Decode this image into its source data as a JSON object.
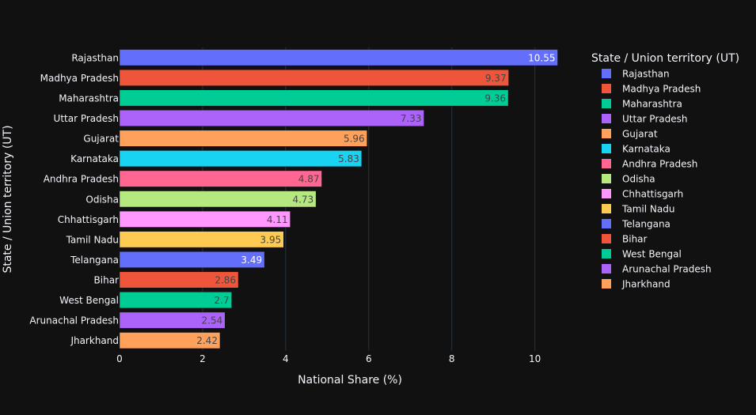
{
  "chart_data": {
    "type": "bar",
    "orientation": "horizontal",
    "xlabel": "National Share (%)",
    "ylabel": "State / Union territory (UT)",
    "xlim": [
      0,
      10.55
    ],
    "x_ticks": [
      0,
      2,
      4,
      6,
      8,
      10
    ],
    "grid": true,
    "legend": {
      "title": "State / Union territory (UT)",
      "placement": "right"
    },
    "series": [
      {
        "name": "Rajasthan",
        "value": 10.55,
        "color": "#636efa",
        "label_color": "#ffffff"
      },
      {
        "name": "Madhya Pradesh",
        "value": 9.37,
        "color": "#ef553b",
        "label_color": "#444444"
      },
      {
        "name": "Maharashtra",
        "value": 9.36,
        "color": "#00cc96",
        "label_color": "#444444"
      },
      {
        "name": "Uttar Pradesh",
        "value": 7.33,
        "color": "#ab63fa",
        "label_color": "#444444"
      },
      {
        "name": "Gujarat",
        "value": 5.96,
        "color": "#ffa15a",
        "label_color": "#444444"
      },
      {
        "name": "Karnataka",
        "value": 5.83,
        "color": "#19d3f3",
        "label_color": "#444444"
      },
      {
        "name": "Andhra Pradesh",
        "value": 4.87,
        "color": "#ff6692",
        "label_color": "#444444"
      },
      {
        "name": "Odisha",
        "value": 4.73,
        "color": "#b6e880",
        "label_color": "#444444"
      },
      {
        "name": "Chhattisgarh",
        "value": 4.11,
        "color": "#ff97ff",
        "label_color": "#444444"
      },
      {
        "name": "Tamil Nadu",
        "value": 3.95,
        "color": "#fecb52",
        "label_color": "#444444"
      },
      {
        "name": "Telangana",
        "value": 3.49,
        "color": "#636efa",
        "label_color": "#ffffff"
      },
      {
        "name": "Bihar",
        "value": 2.86,
        "color": "#ef553b",
        "label_color": "#444444"
      },
      {
        "name": "West Bengal",
        "value": 2.7,
        "color": "#00cc96",
        "label_color": "#444444"
      },
      {
        "name": "Arunachal Pradesh",
        "value": 2.54,
        "color": "#ab63fa",
        "label_color": "#444444"
      },
      {
        "name": "Jharkhand",
        "value": 2.42,
        "color": "#ffa15a",
        "label_color": "#444444"
      }
    ]
  }
}
